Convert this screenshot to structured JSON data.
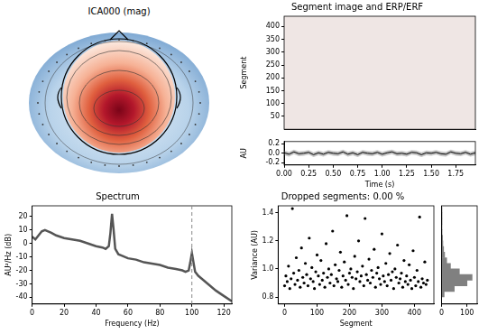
{
  "chart_data": [
    {
      "type": "topomap",
      "title": "ICA000 (mag)"
    },
    {
      "type": "image",
      "title": "Segment image and ERP/ERF",
      "y_label": "Segment",
      "xlim": [
        0,
        1.95
      ],
      "ylim": [
        0,
        440
      ],
      "yticks": [
        50,
        100,
        150,
        200,
        250,
        300,
        350,
        400
      ],
      "tick_labels": "y",
      "grid": false
    },
    {
      "type": "line",
      "x_label": "Time (s)",
      "y_label": "AU",
      "x": [
        0,
        0.05,
        0.1,
        0.15,
        0.2,
        0.25,
        0.3,
        0.35,
        0.4,
        0.45,
        0.5,
        0.55,
        0.6,
        0.65,
        0.7,
        0.75,
        0.8,
        0.85,
        0.9,
        0.95,
        1,
        1.05,
        1.1,
        1.15,
        1.2,
        1.25,
        1.3,
        1.35,
        1.4,
        1.45,
        1.5,
        1.55,
        1.6,
        1.65,
        1.7,
        1.75,
        1.8,
        1.85,
        1.9,
        1.95
      ],
      "values": [
        0.01,
        -0.02,
        0.03,
        -0.01,
        0.0,
        0.02,
        -0.03,
        0.01,
        -0.02,
        0.02,
        0.0,
        -0.01,
        0.03,
        -0.02,
        0.01,
        -0.03,
        0.02,
        0.0,
        -0.01,
        0.02,
        -0.02,
        0.01,
        0.03,
        -0.01,
        0.0,
        -0.02,
        0.02,
        0.01,
        -0.03,
        0.01,
        0.0,
        0.02,
        -0.01,
        -0.02,
        0.03,
        0.0,
        -0.01,
        0.02,
        -0.02,
        0.01
      ],
      "error": [
        0.05,
        0.05,
        0.05,
        0.05,
        0.05,
        0.05,
        0.05,
        0.05,
        0.05,
        0.05,
        0.05,
        0.05,
        0.05,
        0.05,
        0.05,
        0.05,
        0.05,
        0.05,
        0.05,
        0.05,
        0.05,
        0.05,
        0.05,
        0.05,
        0.05,
        0.05,
        0.05,
        0.05,
        0.05,
        0.05,
        0.05,
        0.05,
        0.05,
        0.05,
        0.05,
        0.05,
        0.05,
        0.05,
        0.05,
        0.05
      ],
      "color": "#000000",
      "xlim": [
        0,
        1.95
      ],
      "xticks": [
        {
          "value": 0,
          "label": "0.00"
        },
        {
          "value": 0.25,
          "label": "0.25"
        },
        {
          "value": 0.5,
          "label": "0.50"
        },
        {
          "value": 0.75,
          "label": "0.75"
        },
        {
          "value": 1,
          "label": "1.00"
        },
        {
          "value": 1.25,
          "label": "1.25"
        },
        {
          "value": 1.5,
          "label": "1.50"
        },
        {
          "value": 1.75,
          "label": "1.75"
        }
      ],
      "ylim": [
        -0.25,
        0.25
      ],
      "yticks": [
        -0.2,
        {
          "value": 0,
          "label": "0.0"
        },
        0.2
      ],
      "grid": false
    },
    {
      "type": "line",
      "title": "Spectrum",
      "x_label": "Frequency (Hz)",
      "y_label": "AU²/Hz (dB)",
      "x": [
        0,
        2,
        4,
        6,
        8,
        10,
        12,
        15,
        20,
        25,
        30,
        35,
        40,
        44,
        46,
        48,
        49,
        50,
        51,
        52,
        54,
        56,
        60,
        65,
        70,
        75,
        80,
        85,
        90,
        94,
        96,
        98,
        99,
        100,
        101,
        102,
        104,
        106,
        110,
        115,
        120,
        125
      ],
      "values": [
        5,
        3,
        6,
        9,
        10,
        9,
        8,
        6,
        4,
        3,
        2,
        0,
        -2,
        -3,
        -4,
        -2,
        8,
        22,
        10,
        -4,
        -8,
        -9,
        -11,
        -12,
        -14,
        -15,
        -16,
        -18,
        -19,
        -20,
        -21,
        -20,
        -14,
        -7,
        -14,
        -21,
        -24,
        -26,
        -30,
        -35,
        -39,
        -43
      ],
      "color": "#555555",
      "xlim": [
        0,
        125
      ],
      "xticks": [
        0,
        20,
        40,
        60,
        80,
        100,
        120
      ],
      "ylim": [
        -45,
        28
      ],
      "yticks": [
        -40,
        -30,
        -20,
        -10,
        0,
        10,
        20
      ],
      "grid": false,
      "vline": {
        "x": 100,
        "line_style": "dashed"
      }
    },
    {
      "type": "scatter",
      "title": "Dropped segments: 0.00 %",
      "x_label": "Segment",
      "y_label": "Variance (AU)",
      "x": [
        0,
        4,
        8,
        12,
        16,
        20,
        24,
        28,
        32,
        36,
        40,
        44,
        48,
        52,
        56,
        60,
        64,
        68,
        72,
        76,
        80,
        84,
        88,
        92,
        96,
        100,
        104,
        108,
        112,
        116,
        120,
        124,
        128,
        132,
        136,
        140,
        144,
        148,
        152,
        156,
        160,
        164,
        168,
        172,
        176,
        180,
        184,
        188,
        192,
        196,
        200,
        204,
        208,
        212,
        216,
        220,
        224,
        228,
        232,
        236,
        240,
        244,
        248,
        252,
        256,
        260,
        264,
        268,
        272,
        276,
        280,
        284,
        288,
        292,
        296,
        300,
        304,
        308,
        312,
        316,
        320,
        324,
        328,
        332,
        336,
        340,
        344,
        348,
        352,
        356,
        360,
        364,
        368,
        372,
        376,
        380,
        384,
        388,
        392,
        396,
        400,
        404,
        408,
        412,
        416,
        420,
        424,
        428,
        432,
        436,
        440
      ],
      "values": [
        0.88,
        0.95,
        0.91,
        1.02,
        0.86,
        0.93,
        1.43,
        0.97,
        0.89,
        1.08,
        0.92,
        0.99,
        0.87,
        1.15,
        0.94,
        0.9,
        1.04,
        0.96,
        0.88,
        1.22,
        0.93,
        1.01,
        0.91,
        0.86,
        0.98,
        1.1,
        0.95,
        0.89,
        1.06,
        0.92,
        0.97,
        0.87,
        1.18,
        0.94,
        1.0,
        0.9,
        0.96,
        1.27,
        0.88,
        1.03,
        0.93,
        0.91,
        0.99,
        1.12,
        0.87,
        0.95,
        1.05,
        0.92,
        1.38,
        0.89,
        0.97,
        1.0,
        0.94,
        0.86,
        1.09,
        0.93,
        0.98,
        1.2,
        0.91,
        0.95,
        1.02,
        0.88,
        1.36,
        0.96,
        0.92,
        1.07,
        0.9,
        0.99,
        0.94,
        1.14,
        0.87,
        0.97,
        1.01,
        0.93,
        0.89,
        1.25,
        0.95,
        0.91,
        1.04,
        0.88,
        0.96,
        1.11,
        0.92,
        0.98,
        0.86,
        1.0,
        0.94,
        1.17,
        0.9,
        0.93,
        0.97,
        0.87,
        1.06,
        0.91,
        0.95,
        0.89,
        1.03,
        0.92,
        0.86,
        1.13,
        0.94,
        0.88,
        0.99,
        0.91,
        1.37,
        0.87,
        0.93,
        0.9,
        1.05,
        0.89,
        0.92
      ],
      "color": "#000000",
      "marker": "circle",
      "xlim": [
        -20,
        460
      ],
      "xticks": [
        0,
        100,
        200,
        300,
        400
      ],
      "ylim": [
        0.75,
        1.45
      ],
      "yticks": [
        0.8,
        {
          "value": 1,
          "label": "1.0"
        },
        1.2,
        1.4
      ],
      "grid": false
    },
    {
      "type": "histogram",
      "orientation": "horizontal",
      "bins": [
        0.8,
        0.84,
        0.88,
        0.92,
        0.96,
        1.0,
        1.04,
        1.08,
        1.12,
        1.16,
        1.2,
        1.24,
        1.28,
        1.32,
        1.36,
        1.4,
        1.44
      ],
      "counts": [
        10,
        50,
        100,
        120,
        70,
        35,
        20,
        12,
        8,
        5,
        4,
        2,
        1,
        2,
        2,
        1
      ],
      "color": "#808080",
      "xlim": [
        0,
        140
      ],
      "xticks": [
        0,
        100
      ],
      "ylim": [
        0.75,
        1.45
      ],
      "tick_labels": "x",
      "grid": false
    }
  ]
}
